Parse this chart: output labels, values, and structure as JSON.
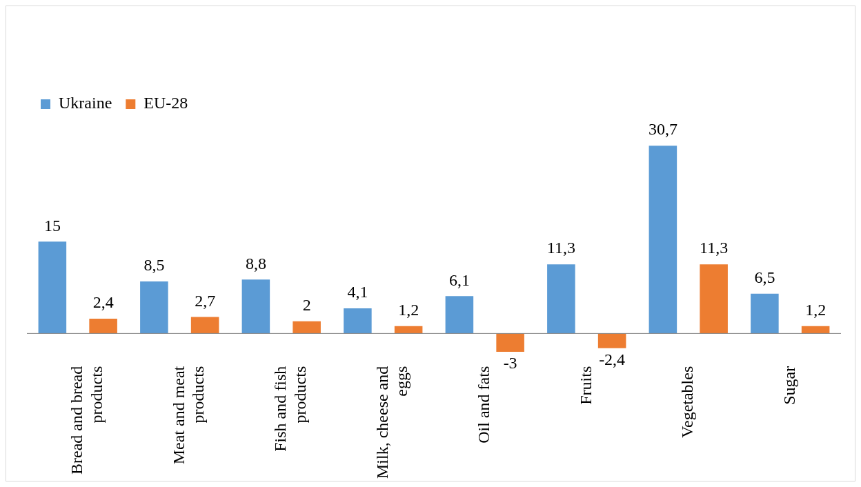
{
  "chart_data": {
    "type": "bar",
    "categories": [
      "Bread and bread products",
      "Meat and meat products",
      "Fish and fish products",
      "Milk, cheese and eggs",
      "Oil and fats",
      "Fruits",
      "Vegetables",
      "Sugar"
    ],
    "series": [
      {
        "name": "Ukraine",
        "color": "#5b9bd5",
        "values": [
          15,
          8.5,
          8.8,
          4.1,
          6.1,
          11.3,
          30.7,
          6.5
        ],
        "value_labels": [
          "15",
          "8,5",
          "8,8",
          "4,1",
          "6,1",
          "11,3",
          "30,7",
          "6,5"
        ]
      },
      {
        "name": "EU-28",
        "color": "#ed7d31",
        "values": [
          2.4,
          2.7,
          2,
          1.2,
          -3,
          -2.4,
          11.3,
          1.2
        ],
        "value_labels": [
          "2,4",
          "2,7",
          "2",
          "1,2",
          "-3",
          "-2,4",
          "11,3",
          "1,2"
        ]
      }
    ],
    "legend": "top left",
    "grid": false
  }
}
